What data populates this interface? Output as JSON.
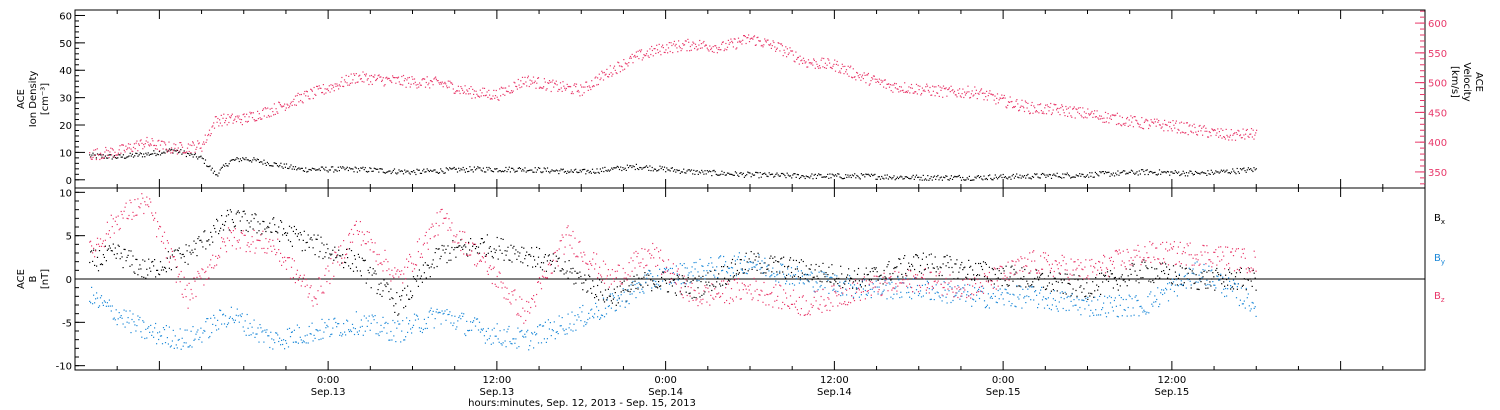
{
  "chart_data": [
    {
      "type": "scatter",
      "panel": "top",
      "ylabel_left": [
        "ACE",
        "Ion Density",
        "[cm⁻³]"
      ],
      "ylabel_right": [
        "ACE",
        "Velocity",
        "[km/s]"
      ],
      "y_left_ticks": [
        "0",
        "10",
        "20",
        "30",
        "40",
        "50",
        "60"
      ],
      "y_left_lim": [
        -3,
        62
      ],
      "y_right_ticks": [
        "350",
        "400",
        "450",
        "500",
        "550",
        "600"
      ],
      "y_right_lim": [
        323,
        622
      ],
      "grid": false,
      "series": [
        {
          "axis": "left",
          "color": "#000000",
          "x": [
            1,
            3,
            5,
            7,
            9,
            10,
            11,
            12,
            14,
            16,
            18,
            20,
            24,
            28,
            32,
            36,
            40,
            44,
            48,
            52,
            56,
            60,
            64,
            68,
            72,
            76,
            80,
            84
          ],
          "y": [
            9,
            8.5,
            9.5,
            11,
            8,
            2,
            7,
            8,
            6,
            4,
            4,
            4,
            3,
            4,
            4,
            3,
            5,
            3,
            2,
            1.5,
            1.5,
            1,
            1,
            1.5,
            2,
            3,
            2.5,
            4
          ]
        },
        {
          "axis": "right",
          "color": "#e8386a",
          "x": [
            1,
            3,
            5,
            7,
            9,
            10,
            12,
            14,
            16,
            18,
            20,
            22,
            24,
            26,
            28,
            30,
            32,
            34,
            36,
            38,
            40,
            42,
            44,
            46,
            48,
            50,
            52,
            54,
            56,
            58,
            60,
            62,
            64,
            66,
            68,
            70,
            72,
            74,
            76,
            78,
            80,
            82,
            84
          ],
          "y": [
            380,
            385,
            400,
            390,
            395,
            438,
            440,
            455,
            475,
            492,
            510,
            505,
            502,
            500,
            485,
            480,
            505,
            495,
            488,
            520,
            545,
            560,
            565,
            560,
            575,
            560,
            535,
            530,
            510,
            495,
            490,
            485,
            485,
            470,
            458,
            455,
            448,
            440,
            432,
            428,
            420,
            412,
            415
          ]
        }
      ]
    },
    {
      "type": "scatter",
      "panel": "bottom",
      "ylabel_left": [
        "ACE",
        "B",
        "[nT]"
      ],
      "y_left_ticks": [
        "-10",
        "-5",
        "0",
        "5",
        "10"
      ],
      "y_left_lim": [
        -10.5,
        10.5
      ],
      "zero_line": true,
      "grid": false,
      "legend_position": "right",
      "series": [
        {
          "name": "B",
          "name_sub": "x",
          "color": "#000000",
          "x": [
            1,
            3,
            5,
            8,
            11,
            14,
            17,
            20,
            23,
            26,
            29,
            32,
            35,
            38,
            41,
            44,
            48,
            52,
            56,
            60,
            64,
            68,
            72,
            76,
            80,
            84
          ],
          "y": [
            2,
            3,
            1,
            3,
            7,
            6,
            4,
            2,
            -3,
            3,
            4,
            3,
            1,
            -2,
            0,
            -1,
            2,
            1,
            0,
            2,
            1,
            0,
            -1,
            1,
            0,
            0
          ]
        },
        {
          "name": "B",
          "name_sub": "y",
          "color": "#1b88d8",
          "x": [
            1,
            3,
            5,
            8,
            11,
            14,
            17,
            20,
            23,
            26,
            29,
            32,
            35,
            38,
            41,
            44,
            48,
            52,
            56,
            60,
            64,
            68,
            72,
            76,
            80,
            84
          ],
          "y": [
            -2,
            -4,
            -6,
            -7,
            -4,
            -7,
            -6,
            -5,
            -6,
            -4,
            -6,
            -7,
            -5,
            -3,
            0,
            1,
            2,
            0,
            -1,
            -1,
            -2,
            -2,
            -3,
            -3,
            1,
            -3
          ]
        },
        {
          "name": "B",
          "name_sub": "z",
          "color": "#e8386a",
          "x": [
            1,
            3,
            5,
            8,
            11,
            14,
            17,
            20,
            23,
            26,
            29,
            32,
            35,
            38,
            41,
            44,
            48,
            52,
            56,
            60,
            64,
            68,
            72,
            76,
            80,
            84
          ],
          "y": [
            3,
            7,
            9,
            -2,
            5,
            4,
            -2,
            6,
            0,
            7,
            2,
            -4,
            5,
            0,
            3,
            -2,
            -1,
            -3,
            -1,
            0,
            -1,
            2,
            1,
            3,
            3,
            2
          ]
        }
      ]
    }
  ],
  "x_axis": {
    "range_hours": [
      0,
      96
    ],
    "major_ticks": [
      {
        "hour": 18,
        "time": "0:00",
        "date": "Sep.13"
      },
      {
        "hour": 30,
        "time": "12:00",
        "date": "Sep.13"
      },
      {
        "hour": 42,
        "time": "0:00",
        "date": "Sep.14"
      },
      {
        "hour": 54,
        "time": "12:00",
        "date": "Sep.14"
      },
      {
        "hour": 66,
        "time": "0:00",
        "date": "Sep.15"
      },
      {
        "hour": 78,
        "time": "12:00",
        "date": "Sep.15"
      }
    ],
    "label": "hours:minutes, Sep. 12, 2013 - Sep. 15, 2013"
  }
}
